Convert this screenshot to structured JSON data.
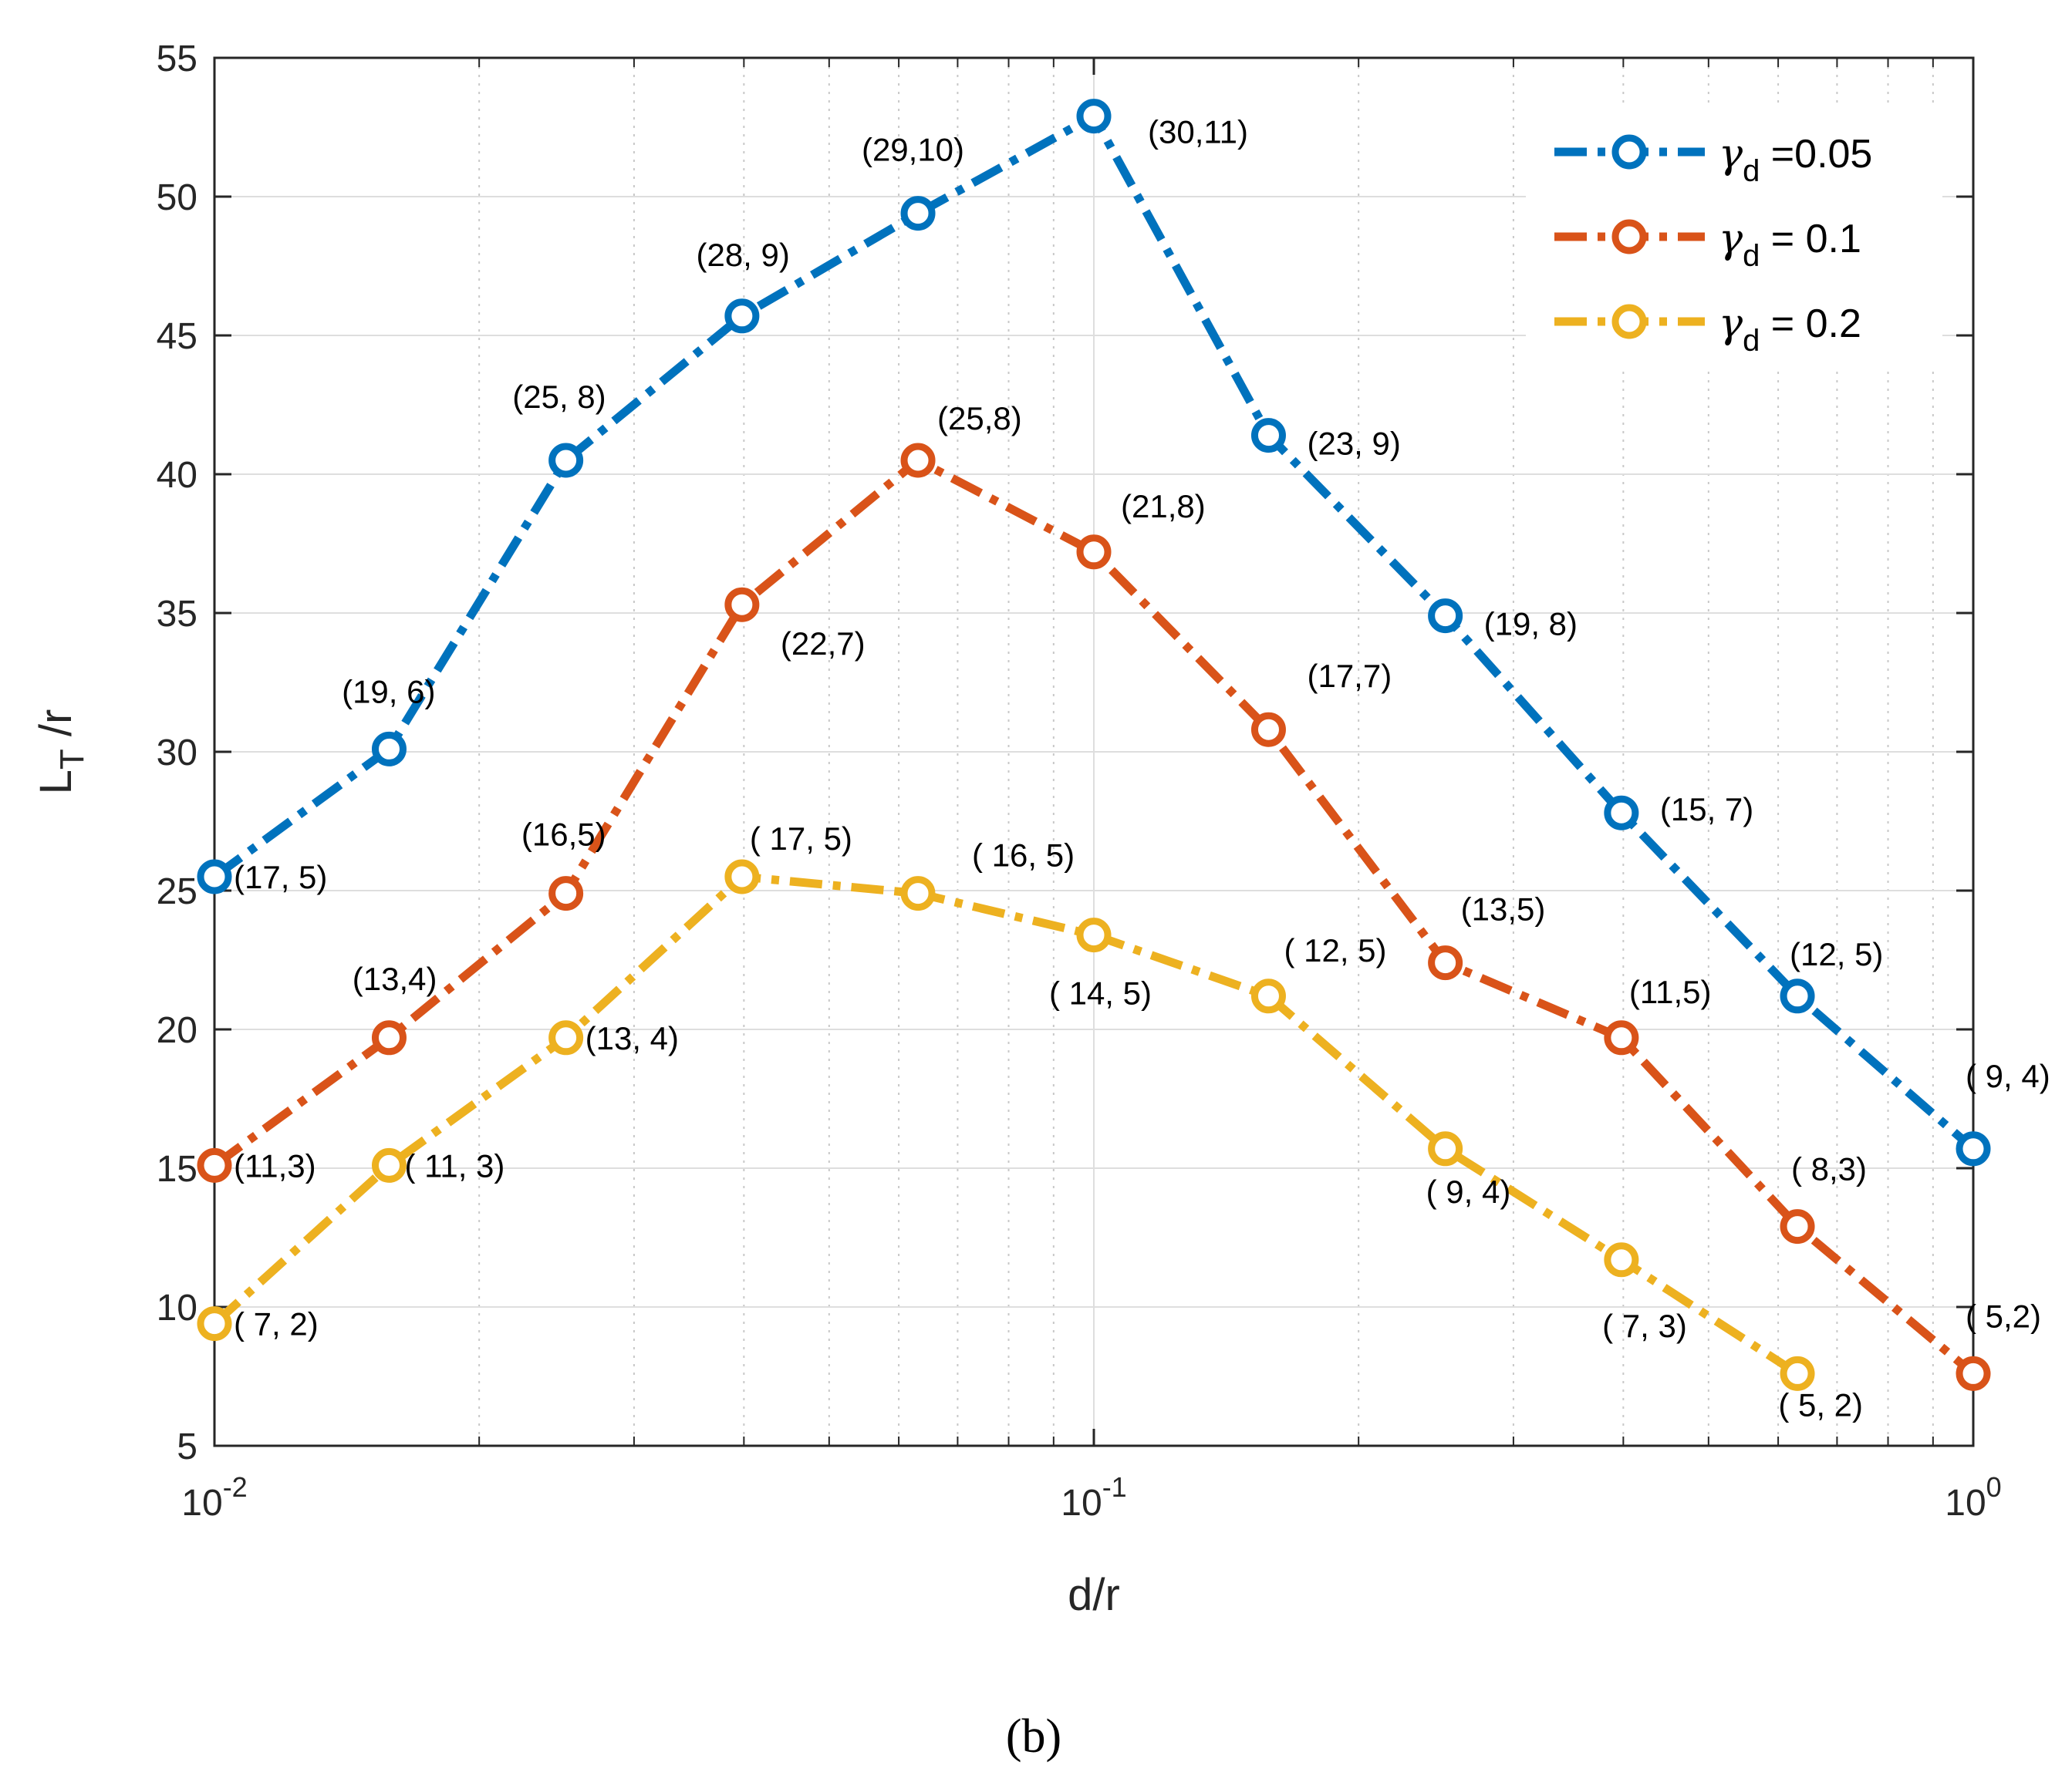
{
  "chart_data": {
    "type": "line",
    "x": [
      0.01,
      0.0158,
      0.0251,
      0.0398,
      0.0631,
      0.1,
      0.158,
      0.251,
      0.398,
      0.631,
      1.0
    ],
    "xscale": "log",
    "xlim": [
      0.01,
      1
    ],
    "ylim": [
      5,
      55
    ],
    "xlabel": "d/r",
    "ylabel": "L",
    "ylabel_sub": "T",
    "ylabel_suffix": " /r",
    "grid": true,
    "x_ticks": [
      {
        "value": 0.01,
        "base": "10",
        "exp": "-2"
      },
      {
        "value": 0.1,
        "base": "10",
        "exp": "-1"
      },
      {
        "value": 1,
        "base": "10",
        "exp": "0"
      }
    ],
    "y_ticks": [
      5,
      10,
      15,
      20,
      25,
      30,
      35,
      40,
      45,
      50,
      55
    ],
    "legend_position": "top-right",
    "series": [
      {
        "name": "γd =0.05",
        "legend_symbol": "γ",
        "legend_sub": "d",
        "legend_rest": " =0.05",
        "color": "#0072BD",
        "values": [
          25.5,
          30.1,
          40.5,
          45.7,
          49.4,
          52.9,
          41.4,
          34.9,
          27.8,
          21.2,
          15.7
        ],
        "labels": [
          "(17, 5)",
          "(19, 6)",
          "(25, 8)",
          "(28, 9)",
          "(29,10)",
          "(30,11)",
          "(23, 9)",
          "(19, 8)",
          "(15, 7)",
          "(12, 5)",
          "( 9, 4)"
        ]
      },
      {
        "name": "γd = 0.1",
        "legend_symbol": "γ",
        "legend_sub": "d",
        "legend_rest": " = 0.1",
        "color": "#D95319",
        "values": [
          15.1,
          19.7,
          24.9,
          35.3,
          40.5,
          37.2,
          30.8,
          22.4,
          19.7,
          12.9,
          7.6
        ],
        "labels": [
          "(11,3)",
          "(13,4)",
          "(16,5)",
          "(22,7)",
          "(25,8)",
          "(21,8)",
          "(17,7)",
          "(13,5)",
          "(11,5)",
          "( 8,3)",
          "( 5,2)"
        ]
      },
      {
        "name": "γd = 0.2",
        "legend_symbol": "γ",
        "legend_sub": "d",
        "legend_rest": " = 0.2",
        "color": "#EDB120",
        "values": [
          9.4,
          15.1,
          19.7,
          25.5,
          24.9,
          23.4,
          21.2,
          15.7,
          11.7,
          7.6,
          null
        ],
        "labels": [
          "( 7,  2)",
          "( 11,  3)",
          "(13,  4)",
          "( 17,  5)",
          "( 16,  5)",
          "( 14,  5)",
          "( 12,  5)",
          "(  9,  4)",
          "(  7,  3)",
          "(  5,  2)",
          ""
        ]
      }
    ]
  },
  "caption": "(b)"
}
